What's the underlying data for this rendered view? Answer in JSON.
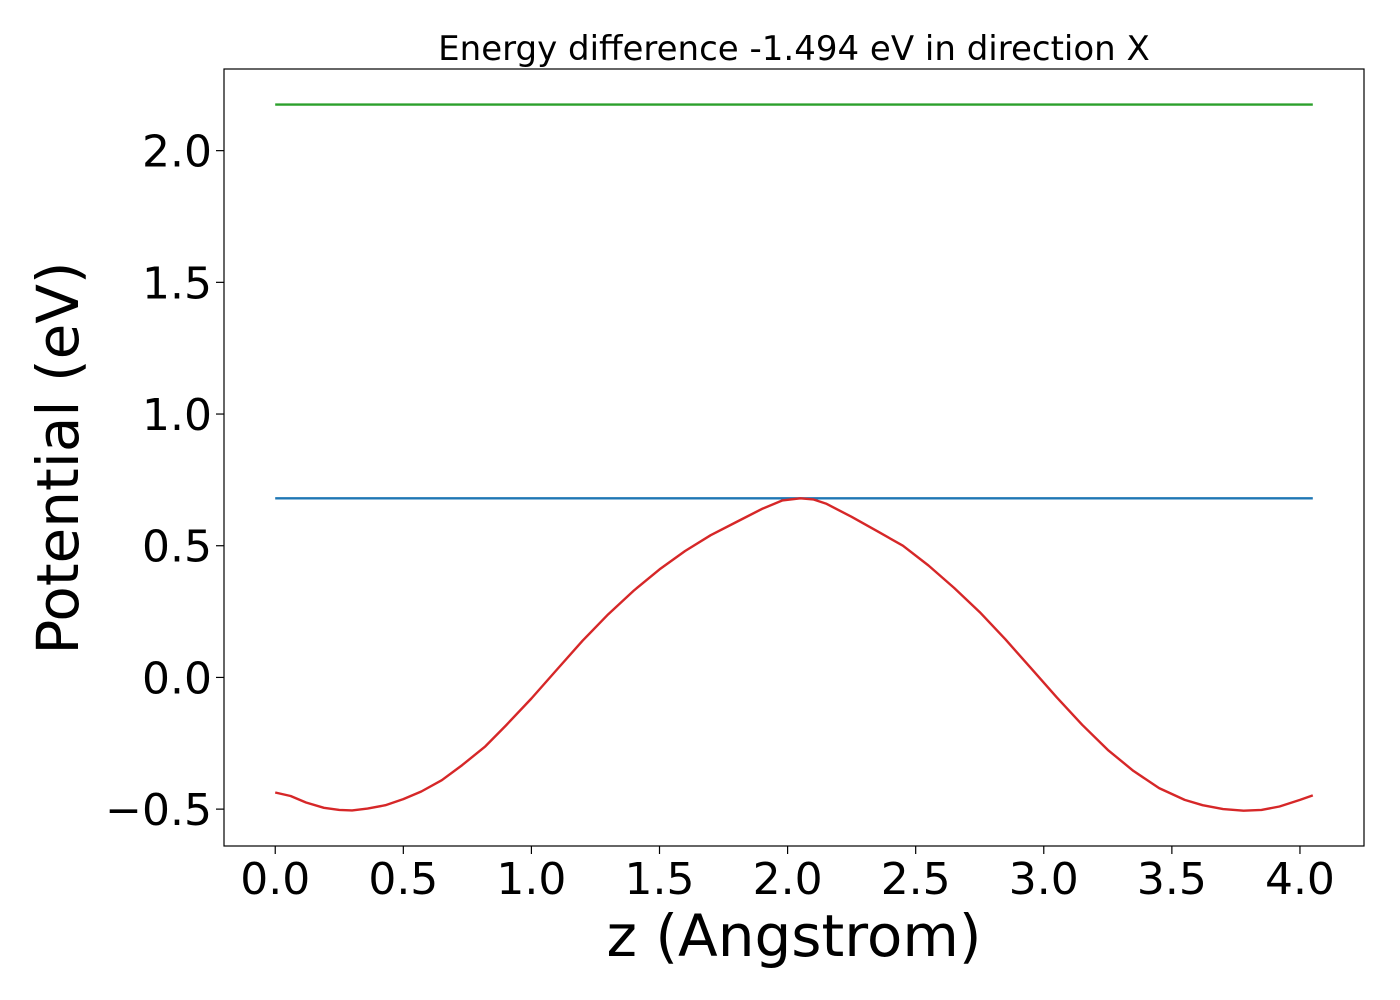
{
  "chart_data": {
    "type": "line",
    "title": "Energy difference -1.494 eV in direction X",
    "xlabel": "z (Angstrom)",
    "ylabel": "Potential (eV)",
    "xlim": [
      -0.2,
      4.25
    ],
    "ylim": [
      -0.64,
      2.31
    ],
    "xticks": [
      0.0,
      0.5,
      1.0,
      1.5,
      2.0,
      2.5,
      3.0,
      3.5,
      4.0
    ],
    "xtick_labels": [
      "0.0",
      "0.5",
      "1.0",
      "1.5",
      "2.0",
      "2.5",
      "3.0",
      "3.5",
      "4.0"
    ],
    "yticks": [
      -0.5,
      0.0,
      0.5,
      1.0,
      1.5,
      2.0
    ],
    "ytick_labels": [
      "−0.5",
      "0.0",
      "0.5",
      "1.0",
      "1.5",
      "2.0"
    ],
    "grid": false,
    "series": [
      {
        "color": "#2ca02c",
        "x": [
          0.0,
          4.05
        ],
        "y": [
          2.175,
          2.175
        ]
      },
      {
        "color": "#1f77b4",
        "x": [
          0.0,
          4.05
        ],
        "y": [
          0.68,
          0.68
        ]
      },
      {
        "color": "#d62728",
        "x": [
          0.0,
          0.06,
          0.12,
          0.19,
          0.25,
          0.3,
          0.36,
          0.43,
          0.5,
          0.57,
          0.65,
          0.73,
          0.82,
          0.9,
          1.0,
          1.1,
          1.2,
          1.3,
          1.4,
          1.5,
          1.6,
          1.7,
          1.8,
          1.9,
          1.98,
          2.05,
          2.1,
          2.15,
          2.25,
          2.35,
          2.45,
          2.55,
          2.65,
          2.75,
          2.85,
          2.95,
          3.05,
          3.15,
          3.25,
          3.35,
          3.45,
          3.55,
          3.62,
          3.7,
          3.78,
          3.85,
          3.92,
          4.0,
          4.05
        ],
        "y": [
          -0.437,
          -0.45,
          -0.475,
          -0.495,
          -0.503,
          -0.505,
          -0.498,
          -0.485,
          -0.462,
          -0.433,
          -0.39,
          -0.333,
          -0.262,
          -0.183,
          -0.08,
          0.03,
          0.14,
          0.24,
          0.33,
          0.41,
          0.48,
          0.54,
          0.59,
          0.64,
          0.672,
          0.68,
          0.676,
          0.66,
          0.61,
          0.555,
          0.5,
          0.425,
          0.34,
          0.248,
          0.145,
          0.035,
          -0.075,
          -0.18,
          -0.275,
          -0.355,
          -0.42,
          -0.465,
          -0.485,
          -0.5,
          -0.506,
          -0.503,
          -0.49,
          -0.465,
          -0.448
        ]
      }
    ]
  }
}
